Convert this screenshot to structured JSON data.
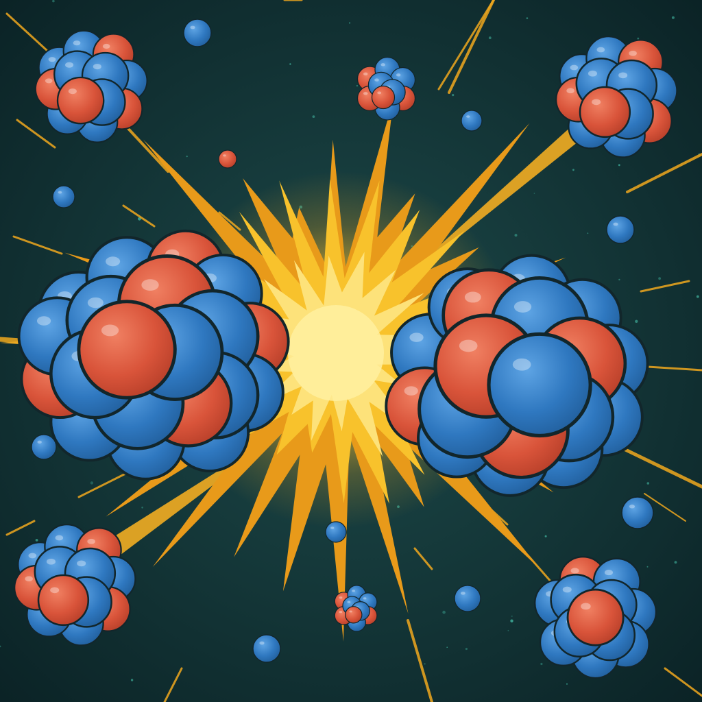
{
  "scene": {
    "description_elements": [
      "fission-burst",
      "nucleus",
      "neutron",
      "proton",
      "speed-streak",
      "star-speck"
    ]
  },
  "colors": {
    "background_center": "#1d4a4a",
    "background_edge": "#0b2326",
    "neutron": "#2f78c0",
    "neutron_highlight": "#5ea4e4",
    "proton": "#d9543a",
    "proton_highlight": "#f08062",
    "outline": "#12262b",
    "burst_core": "#fff0a0",
    "burst_mid": "#f8c22c",
    "burst_outer": "#e89a1a",
    "streak": "#f0a81e",
    "speck": "#3fae9a"
  }
}
